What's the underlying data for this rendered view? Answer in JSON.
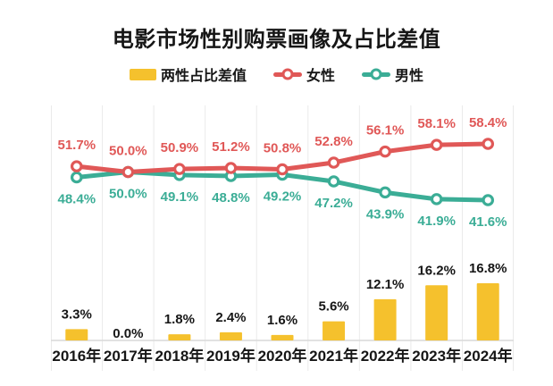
{
  "title": "电影市场性别购票画像及占比差值",
  "colors": {
    "bar": "#F5C12D",
    "female": "#E05857",
    "male": "#3BAD96",
    "text": "#161616",
    "grid": "#EAEAEA",
    "axis_line": "#D9D9D9",
    "marker_fill": "#FFFFFF"
  },
  "chart_data": {
    "type": "combo",
    "title": "电影市场性别购票画像及占比差值",
    "categories": [
      "2016年",
      "2017年",
      "2018年",
      "2019年",
      "2020年",
      "2021年",
      "2022年",
      "2023年",
      "2024年"
    ],
    "series": [
      {
        "name": "两性占比差值",
        "type": "bar",
        "unit": "%",
        "values": [
          3.3,
          0.0,
          1.8,
          2.4,
          1.6,
          5.6,
          12.1,
          16.2,
          16.8
        ],
        "labels": [
          "3.3%",
          "0.0%",
          "1.8%",
          "2.4%",
          "1.6%",
          "5.6%",
          "12.1%",
          "16.2%",
          "16.8%"
        ],
        "color": "#F5C12D"
      },
      {
        "name": "女性",
        "type": "line",
        "unit": "%",
        "values": [
          51.7,
          50.0,
          50.9,
          51.2,
          50.8,
          52.8,
          56.1,
          58.1,
          58.4
        ],
        "labels": [
          "51.7%",
          "50.0%",
          "50.9%",
          "51.2%",
          "50.8%",
          "52.8%",
          "56.1%",
          "58.1%",
          "58.4%"
        ],
        "color": "#E05857"
      },
      {
        "name": "男性",
        "type": "line",
        "unit": "%",
        "values": [
          48.4,
          50.0,
          49.1,
          48.8,
          49.2,
          47.2,
          43.9,
          41.9,
          41.6
        ],
        "labels": [
          "48.4%",
          "50.0%",
          "49.1%",
          "48.8%",
          "49.2%",
          "47.2%",
          "43.9%",
          "41.9%",
          "41.6%"
        ],
        "color": "#3BAD96"
      }
    ],
    "legend_position": "top",
    "grid": "vertical-only",
    "value_labels_visible": true
  }
}
